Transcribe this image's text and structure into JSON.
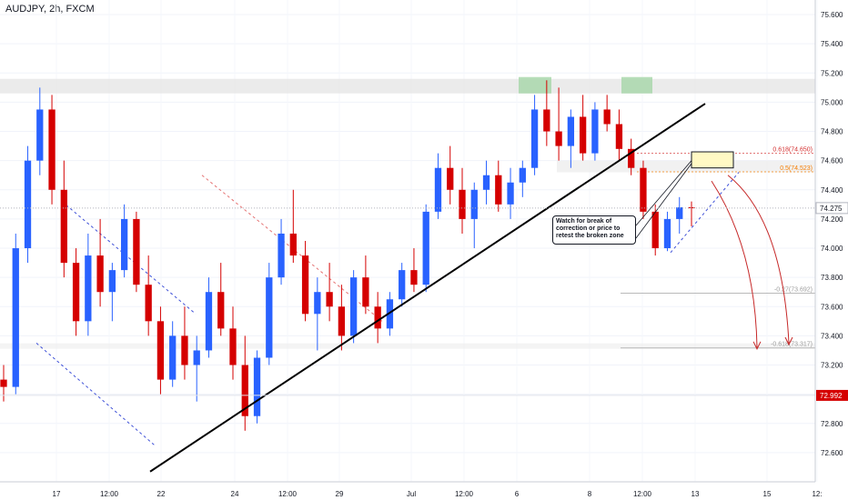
{
  "header": {
    "symbol_title": "AUDJPY, 2h, FXCM"
  },
  "annotation": {
    "lines": [
      "Watch for break of",
      "correction or price to",
      "retest the broken zone"
    ]
  },
  "colors": {
    "up": "#2962ff",
    "down": "#d50000",
    "trendline": "#000000",
    "channel_blue": "#3f51d8",
    "channel_red": "#e57373",
    "supply_zone": "#e6e6e6",
    "highlight_green": "#a5d6a7",
    "fib_0618": "#d32f2f",
    "fib_05": "#f57c00",
    "fib_ext": "#9e9e9e",
    "last_price": "#000000",
    "marked_price": "#d50000",
    "arrow": "#c62828",
    "target_box": "#fff9c4"
  },
  "chart_data": {
    "type": "candlestick",
    "symbol": "AUDJPY",
    "timeframe": "2h",
    "source": "FXCM",
    "x_ticks": [
      "17",
      "12:00",
      "22",
      "24",
      "12:00",
      "29",
      "Jul",
      "12:00",
      "6",
      "8",
      "12:00",
      "13",
      "15",
      "12:"
    ],
    "y_ticks": [
      "75.600",
      "75.400",
      "75.200",
      "75.000",
      "74.800",
      "74.600",
      "74.400",
      "74.200",
      "74.000",
      "73.800",
      "73.600",
      "73.400",
      "73.200",
      "73.000",
      "72.800",
      "72.600"
    ],
    "ylim": [
      72.4,
      75.7
    ],
    "last_price": {
      "label": "74.275",
      "value": 74.275
    },
    "marked_price": {
      "label": "72.992",
      "value": 72.992
    },
    "fib_levels": [
      {
        "label": "0.618(74.650)",
        "value": 74.65
      },
      {
        "label": "0.5(74.523)",
        "value": 74.523
      },
      {
        "label": "-0.27(73.692)",
        "value": 73.692
      },
      {
        "label": "-0.618(73.317)",
        "value": 73.317
      }
    ],
    "supply_zone": [
      75.06,
      75.16
    ],
    "candles_approx": [
      {
        "o": 73.1,
        "h": 73.2,
        "l": 72.95,
        "c": 73.05
      },
      {
        "o": 73.05,
        "h": 74.1,
        "l": 73.0,
        "c": 74.0
      },
      {
        "o": 74.0,
        "h": 74.7,
        "l": 73.9,
        "c": 74.6
      },
      {
        "o": 74.6,
        "h": 75.1,
        "l": 74.5,
        "c": 74.95
      },
      {
        "o": 74.95,
        "h": 75.05,
        "l": 74.3,
        "c": 74.4
      },
      {
        "o": 74.4,
        "h": 74.6,
        "l": 73.8,
        "c": 73.9
      },
      {
        "o": 73.9,
        "h": 74.0,
        "l": 73.4,
        "c": 73.5
      },
      {
        "o": 73.5,
        "h": 74.1,
        "l": 73.4,
        "c": 73.95
      },
      {
        "o": 73.95,
        "h": 74.2,
        "l": 73.6,
        "c": 73.7
      },
      {
        "o": 73.7,
        "h": 73.9,
        "l": 73.5,
        "c": 73.85
      },
      {
        "o": 73.85,
        "h": 74.3,
        "l": 73.8,
        "c": 74.2
      },
      {
        "o": 74.2,
        "h": 74.25,
        "l": 73.7,
        "c": 73.75
      },
      {
        "o": 73.75,
        "h": 73.95,
        "l": 73.4,
        "c": 73.5
      },
      {
        "o": 73.5,
        "h": 73.6,
        "l": 73.0,
        "c": 73.1
      },
      {
        "o": 73.1,
        "h": 73.5,
        "l": 73.05,
        "c": 73.4
      },
      {
        "o": 73.4,
        "h": 73.6,
        "l": 73.1,
        "c": 73.2
      },
      {
        "o": 73.2,
        "h": 73.4,
        "l": 72.95,
        "c": 73.3
      },
      {
        "o": 73.3,
        "h": 73.8,
        "l": 73.25,
        "c": 73.7
      },
      {
        "o": 73.7,
        "h": 73.9,
        "l": 73.4,
        "c": 73.45
      },
      {
        "o": 73.45,
        "h": 73.6,
        "l": 73.1,
        "c": 73.2
      },
      {
        "o": 73.2,
        "h": 73.4,
        "l": 72.75,
        "c": 72.85
      },
      {
        "o": 72.85,
        "h": 73.3,
        "l": 72.8,
        "c": 73.25
      },
      {
        "o": 73.25,
        "h": 73.9,
        "l": 73.2,
        "c": 73.8
      },
      {
        "o": 73.8,
        "h": 74.2,
        "l": 73.75,
        "c": 74.1
      },
      {
        "o": 74.1,
        "h": 74.4,
        "l": 73.9,
        "c": 73.95
      },
      {
        "o": 73.95,
        "h": 74.05,
        "l": 73.5,
        "c": 73.55
      },
      {
        "o": 73.55,
        "h": 73.8,
        "l": 73.3,
        "c": 73.7
      },
      {
        "o": 73.7,
        "h": 73.9,
        "l": 73.5,
        "c": 73.6
      },
      {
        "o": 73.6,
        "h": 73.75,
        "l": 73.3,
        "c": 73.4
      },
      {
        "o": 73.4,
        "h": 73.85,
        "l": 73.35,
        "c": 73.8
      },
      {
        "o": 73.8,
        "h": 73.95,
        "l": 73.55,
        "c": 73.6
      },
      {
        "o": 73.6,
        "h": 73.7,
        "l": 73.35,
        "c": 73.45
      },
      {
        "o": 73.45,
        "h": 73.7,
        "l": 73.4,
        "c": 73.65
      },
      {
        "o": 73.65,
        "h": 73.9,
        "l": 73.6,
        "c": 73.85
      },
      {
        "o": 73.85,
        "h": 74.0,
        "l": 73.7,
        "c": 73.75
      },
      {
        "o": 73.75,
        "h": 74.3,
        "l": 73.7,
        "c": 74.25
      },
      {
        "o": 74.25,
        "h": 74.65,
        "l": 74.2,
        "c": 74.55
      },
      {
        "o": 74.55,
        "h": 74.7,
        "l": 74.3,
        "c": 74.4
      },
      {
        "o": 74.4,
        "h": 74.55,
        "l": 74.1,
        "c": 74.2
      },
      {
        "o": 74.2,
        "h": 74.45,
        "l": 74.0,
        "c": 74.4
      },
      {
        "o": 74.4,
        "h": 74.6,
        "l": 74.3,
        "c": 74.5
      },
      {
        "o": 74.5,
        "h": 74.6,
        "l": 74.25,
        "c": 74.3
      },
      {
        "o": 74.3,
        "h": 74.55,
        "l": 74.2,
        "c": 74.45
      },
      {
        "o": 74.45,
        "h": 74.6,
        "l": 74.35,
        "c": 74.55
      },
      {
        "o": 74.55,
        "h": 75.05,
        "l": 74.5,
        "c": 74.95
      },
      {
        "o": 74.95,
        "h": 75.15,
        "l": 74.7,
        "c": 74.8
      },
      {
        "o": 74.8,
        "h": 75.1,
        "l": 74.6,
        "c": 74.7
      },
      {
        "o": 74.7,
        "h": 74.95,
        "l": 74.55,
        "c": 74.9
      },
      {
        "o": 74.9,
        "h": 75.05,
        "l": 74.6,
        "c": 74.65
      },
      {
        "o": 74.65,
        "h": 75.0,
        "l": 74.6,
        "c": 74.95
      },
      {
        "o": 74.95,
        "h": 75.05,
        "l": 74.8,
        "c": 74.85
      },
      {
        "o": 74.85,
        "h": 74.95,
        "l": 74.6,
        "c": 74.68
      },
      {
        "o": 74.68,
        "h": 74.75,
        "l": 74.5,
        "c": 74.55
      },
      {
        "o": 74.55,
        "h": 74.6,
        "l": 74.2,
        "c": 74.25
      },
      {
        "o": 74.25,
        "h": 74.3,
        "l": 73.95,
        "c": 74.0
      },
      {
        "o": 74.0,
        "h": 74.25,
        "l": 73.98,
        "c": 74.2
      },
      {
        "o": 74.2,
        "h": 74.35,
        "l": 74.1,
        "c": 74.28
      },
      {
        "o": 74.28,
        "h": 74.32,
        "l": 74.15,
        "c": 74.275
      }
    ]
  }
}
